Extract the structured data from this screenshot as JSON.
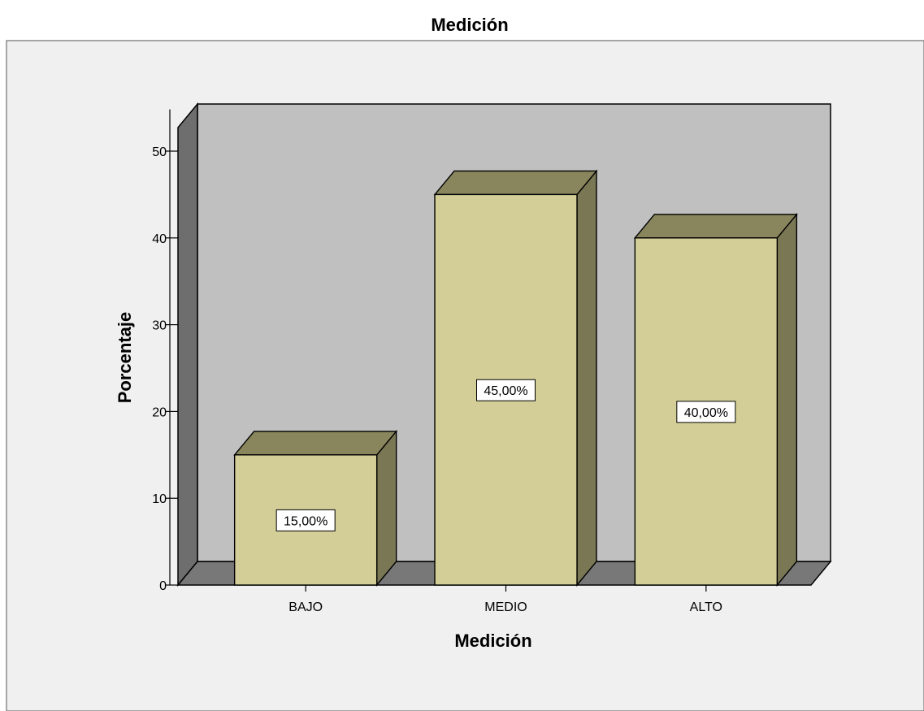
{
  "chart_data": {
    "type": "bar",
    "title": "Medición",
    "xlabel": "Medición",
    "ylabel": "Porcentaje",
    "categories": [
      "BAJO",
      "MEDIO",
      "ALTO"
    ],
    "values": [
      15,
      45,
      40
    ],
    "data_labels": [
      "15,00%",
      "45,00%",
      "40,00%"
    ],
    "ylim": [
      0,
      55
    ],
    "yticks": [
      0,
      10,
      20,
      30,
      40,
      50
    ],
    "grid": false,
    "legend": "none",
    "style": "3d",
    "colors": {
      "bar_front": "#d3ce97",
      "bar_top": "#89865d",
      "bar_side": "#7a7755",
      "plot_back": "#c0c0c0",
      "plot_floor": "#787878",
      "plot_left": "#6e6e6e",
      "outer_background": "#f0f0f0"
    }
  }
}
